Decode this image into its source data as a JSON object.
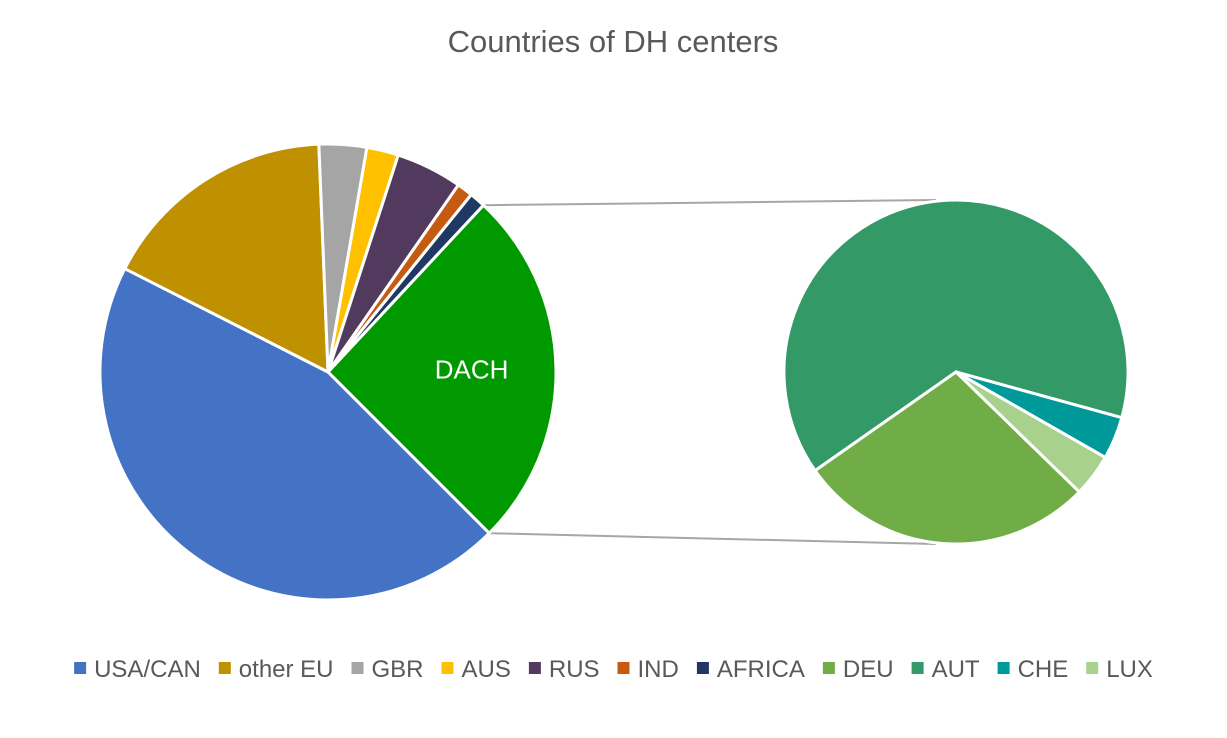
{
  "chart_data": {
    "type": "bar-of-pie",
    "title": "Countries of DH centers",
    "main_pie": {
      "slices": [
        {
          "name": "DACH",
          "value": 25.0,
          "color": "#009900",
          "label": "DACH"
        },
        {
          "name": "USA/CAN",
          "value": 44.0,
          "color": "#4472C4"
        },
        {
          "name": "other EU",
          "value": 16.5,
          "color": "#BF9000"
        },
        {
          "name": "GBR",
          "value": 3.3,
          "color": "#A5A5A5"
        },
        {
          "name": "AUS",
          "value": 2.2,
          "color": "#FFC000"
        },
        {
          "name": "RUS",
          "value": 4.6,
          "color": "#523A5E"
        },
        {
          "name": "IND",
          "value": 1.1,
          "color": "#C55A11"
        },
        {
          "name": "AFRICA",
          "value": 1.1,
          "color": "#1F3864"
        }
      ]
    },
    "secondary_pie": {
      "slices": [
        {
          "name": "AUT",
          "value": 64.0,
          "color": "#339966"
        },
        {
          "name": "CHE",
          "value": 4.0,
          "color": "#009999"
        },
        {
          "name": "LUX",
          "value": 4.0,
          "color": "#A9D18E"
        },
        {
          "name": "DEU",
          "value": 28.0,
          "color": "#70AD47"
        }
      ]
    },
    "legend": [
      {
        "label": "USA/CAN",
        "color": "#4472C4"
      },
      {
        "label": "other EU",
        "color": "#BF9000"
      },
      {
        "label": "GBR",
        "color": "#A5A5A5"
      },
      {
        "label": "AUS",
        "color": "#FFC000"
      },
      {
        "label": "RUS",
        "color": "#523A5E"
      },
      {
        "label": "IND",
        "color": "#C55A11"
      },
      {
        "label": "AFRICA",
        "color": "#1F3864"
      },
      {
        "label": "DEU",
        "color": "#70AD47"
      },
      {
        "label": "AUT",
        "color": "#339966"
      },
      {
        "label": "CHE",
        "color": "#009999"
      },
      {
        "label": "LUX",
        "color": "#A9D18E"
      }
    ],
    "legend_position": "bottom"
  }
}
